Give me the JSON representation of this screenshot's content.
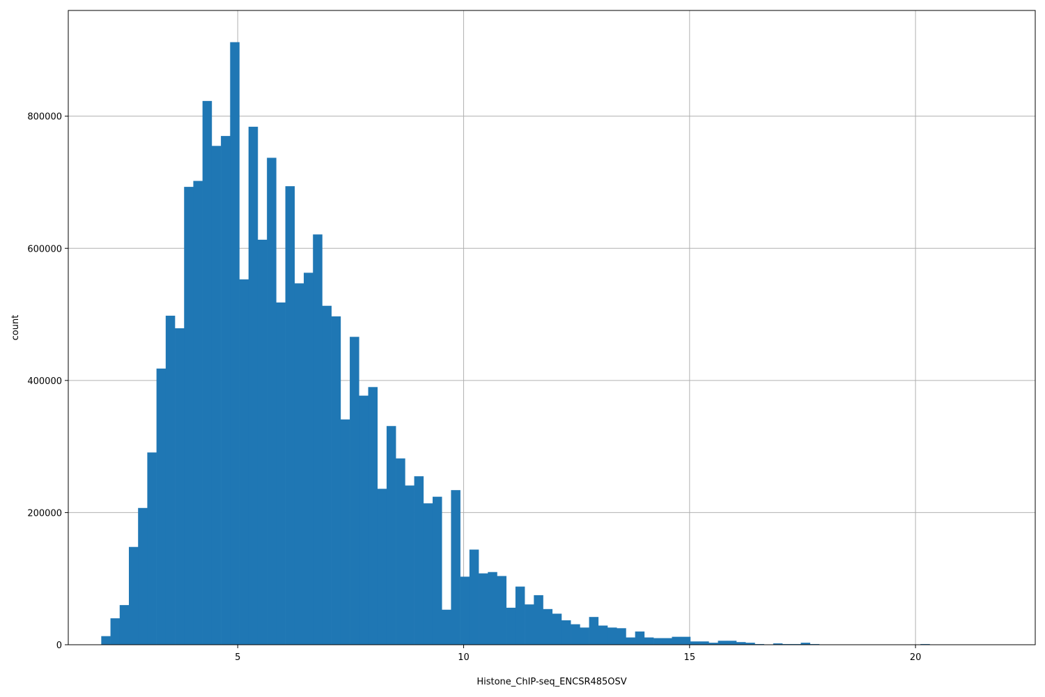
{
  "chart_data": {
    "type": "bar",
    "xlabel": "Histone_ChIP-seq_ENCSR485OSV",
    "ylabel": "count",
    "xlim": [
      1.25,
      22.65
    ],
    "ylim": [
      0,
      960000
    ],
    "grid": true,
    "x_ticks": [
      5,
      10,
      15,
      20
    ],
    "y_ticks": [
      0,
      200000,
      400000,
      600000,
      800000
    ],
    "bar_color": "#1f77b4",
    "bin_start": 1.98,
    "bin_width": 0.2037,
    "values": [
      13000,
      40000,
      60000,
      148000,
      207000,
      291000,
      418000,
      498000,
      479000,
      693000,
      702000,
      823000,
      755000,
      770000,
      912000,
      553000,
      784000,
      613000,
      737000,
      518000,
      694000,
      547000,
      563000,
      621000,
      513000,
      497000,
      341000,
      466000,
      377000,
      390000,
      236000,
      331000,
      282000,
      241000,
      255000,
      214000,
      224000,
      53000,
      234000,
      103000,
      144000,
      108000,
      110000,
      104000,
      56000,
      88000,
      61000,
      75000,
      54000,
      47000,
      37000,
      31000,
      26000,
      42000,
      29000,
      26000,
      25000,
      11000,
      20000,
      11000,
      10000,
      10000,
      12000,
      12000,
      5000,
      5000,
      3000,
      6000,
      6000,
      4000,
      3000,
      1000,
      0,
      2000,
      1000,
      1000,
      3000,
      1000,
      0,
      0,
      0,
      0,
      0,
      0,
      0,
      0,
      0,
      0,
      0,
      1000,
      0,
      0,
      0,
      0,
      0,
      0,
      0,
      0,
      0,
      0
    ]
  }
}
